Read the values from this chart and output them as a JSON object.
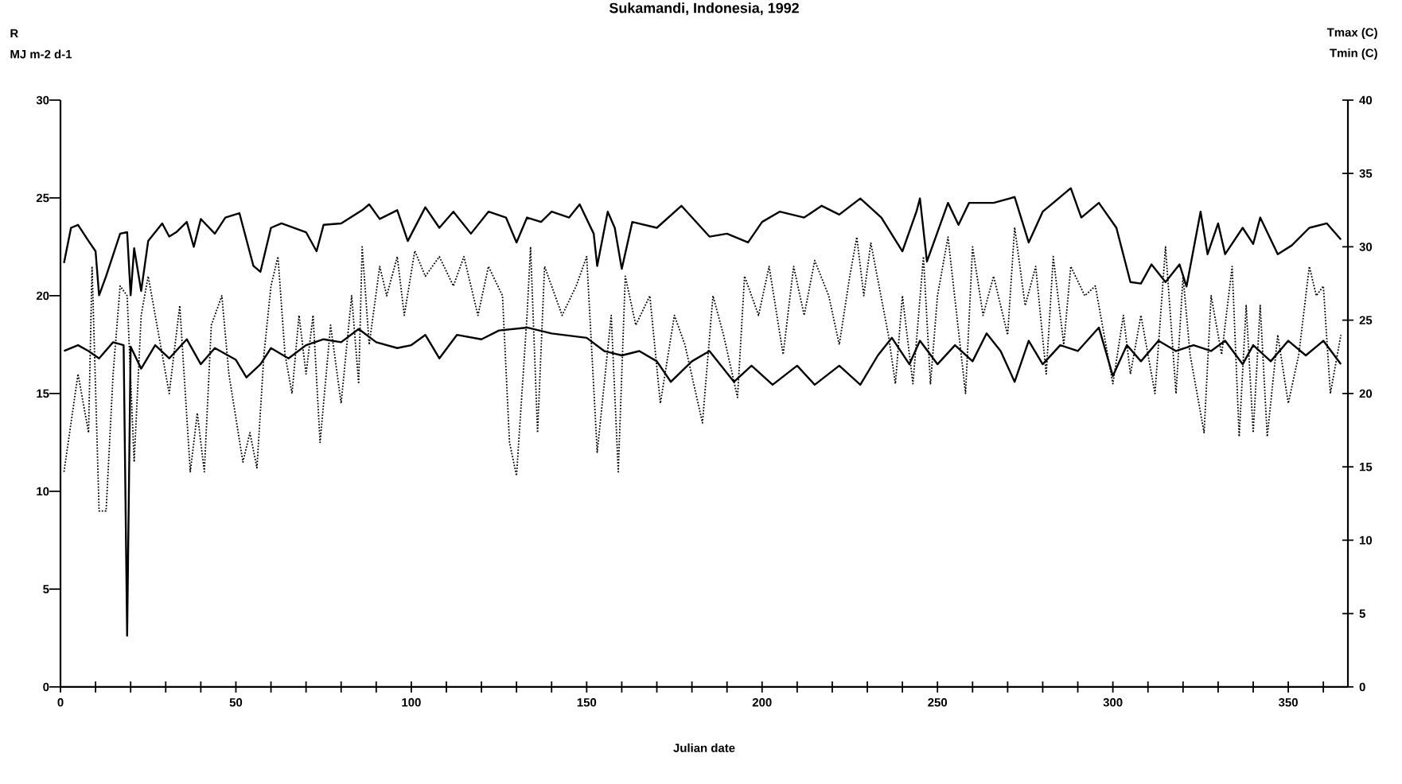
{
  "chart_data": {
    "type": "line",
    "title": "Sukamandi, Indonesia, 1992",
    "xlabel": "Julian date",
    "ylabel": "MJ m-2 d-1",
    "y2label": "Tmin (C)",
    "annotations": [
      "R",
      "Tmax (C)"
    ],
    "xlim": [
      0,
      367
    ],
    "ylim": [
      0,
      30
    ],
    "y2lim": [
      0,
      40
    ],
    "xticks": [
      0,
      {
        "value": 10,
        "label": null
      },
      {
        "value": 20,
        "label": null
      },
      {
        "value": 30,
        "label": null
      },
      {
        "value": 40,
        "label": null
      },
      50,
      {
        "value": 60,
        "label": null
      },
      {
        "value": 70,
        "label": null
      },
      {
        "value": 80,
        "label": null
      },
      {
        "value": 90,
        "label": null
      },
      100,
      {
        "value": 110,
        "label": null
      },
      {
        "value": 120,
        "label": null
      },
      {
        "value": 130,
        "label": null
      },
      {
        "value": 140,
        "label": null
      },
      150,
      {
        "value": 160,
        "label": null
      },
      {
        "value": 170,
        "label": null
      },
      {
        "value": 180,
        "label": null
      },
      {
        "value": 190,
        "label": null
      },
      200,
      {
        "value": 210,
        "label": null
      },
      {
        "value": 220,
        "label": null
      },
      {
        "value": 230,
        "label": null
      },
      {
        "value": 240,
        "label": null
      },
      250,
      {
        "value": 260,
        "label": null
      },
      {
        "value": 270,
        "label": null
      },
      {
        "value": 280,
        "label": null
      },
      {
        "value": 290,
        "label": null
      },
      300,
      {
        "value": 310,
        "label": null
      },
      {
        "value": 320,
        "label": null
      },
      {
        "value": 330,
        "label": null
      },
      {
        "value": 340,
        "label": null
      },
      350,
      {
        "value": 360,
        "label": null
      }
    ],
    "yticks": [
      0,
      5,
      10,
      15,
      20,
      25,
      30
    ],
    "y2ticks": [
      0,
      5,
      10,
      15,
      20,
      25,
      30,
      35,
      40
    ],
    "marker": "none",
    "series": [
      {
        "color": "#000000",
        "line_style": "dotted",
        "x": [
          1,
          3,
          5,
          7,
          8,
          9,
          11,
          13,
          15,
          17,
          19,
          21,
          23,
          25,
          27,
          29,
          31,
          34,
          37,
          39,
          41,
          43,
          46,
          48,
          52,
          54,
          56,
          58,
          60,
          62,
          64,
          66,
          68,
          70,
          72,
          74,
          77,
          80,
          83,
          85,
          86,
          88,
          91,
          93,
          96,
          98,
          101,
          104,
          108,
          112,
          115,
          119,
          122,
          126,
          128,
          130,
          133,
          134,
          136,
          138,
          143,
          147,
          150,
          153,
          157,
          159,
          161,
          164,
          168,
          171,
          175,
          178,
          183,
          186,
          189,
          193,
          195,
          199,
          202,
          206,
          209,
          212,
          215,
          219,
          222,
          225,
          227,
          229,
          231,
          236,
          238,
          240,
          243,
          246,
          248,
          250,
          253,
          258,
          260,
          263,
          266,
          270,
          272,
          275,
          278,
          281,
          283,
          286,
          288,
          292,
          295,
          300,
          303,
          305,
          308,
          312,
          315,
          318,
          320,
          322,
          326,
          328,
          331,
          334,
          336,
          338,
          340,
          342,
          344,
          347,
          350,
          353,
          356,
          358,
          360,
          362,
          365
        ],
        "values": [
          11,
          13.5,
          16,
          14,
          13,
          21.5,
          9,
          9,
          16,
          20.5,
          20,
          11.5,
          19,
          21,
          19,
          17,
          15,
          19.5,
          11,
          14,
          11,
          18.5,
          20,
          16,
          11.5,
          13,
          11.2,
          17,
          20.5,
          22,
          17,
          15,
          19,
          16,
          19,
          12.5,
          18.5,
          14.5,
          20,
          15.5,
          22.5,
          17.5,
          21.5,
          20,
          22,
          19,
          22.3,
          21,
          22,
          20.5,
          22,
          19,
          21.5,
          20,
          12.5,
          10.8,
          19,
          22.5,
          13,
          21.5,
          19,
          20.5,
          22,
          12,
          19,
          11,
          21,
          18.5,
          20,
          14.5,
          19,
          17.5,
          13.5,
          20,
          18,
          14.8,
          21,
          19,
          21.5,
          17,
          21.5,
          19,
          21.8,
          20,
          17.5,
          21,
          23,
          20,
          22.7,
          18,
          15.5,
          20,
          15.5,
          22,
          15.5,
          20,
          23,
          15,
          22.5,
          19,
          21,
          18,
          23.5,
          19.5,
          21.5,
          16,
          22,
          17.5,
          21.5,
          20,
          20.5,
          15.5,
          19,
          16,
          19,
          15,
          22.5,
          15,
          21,
          17,
          13,
          20,
          17,
          21.5,
          12.8,
          19.5,
          13,
          19.5,
          12.8,
          18,
          14.5,
          17,
          21.5,
          20,
          20.5,
          15,
          18
        ]
      },
      {
        "color": "#000000",
        "line_style": "solid",
        "axis": "y2",
        "x": [
          1,
          3,
          5,
          8,
          10,
          11,
          13,
          17,
          19,
          20,
          21,
          23,
          25,
          29,
          31,
          33,
          36,
          38,
          40,
          44,
          47,
          51,
          55,
          57,
          60,
          63,
          70,
          73,
          75,
          80,
          86,
          88,
          91,
          96,
          99,
          104,
          108,
          112,
          117,
          122,
          127,
          130,
          133,
          137,
          140,
          145,
          148,
          152,
          153,
          156,
          158,
          160,
          163,
          170,
          177,
          185,
          190,
          196,
          200,
          205,
          212,
          217,
          222,
          228,
          234,
          240,
          244,
          245,
          247,
          253,
          256,
          259,
          266,
          272,
          276,
          280,
          288,
          291,
          296,
          301,
          305,
          308,
          311,
          315,
          319,
          321,
          325,
          327,
          330,
          332,
          337,
          340,
          342,
          347,
          351,
          356,
          361,
          365
        ],
        "values": [
          28.9,
          31.3,
          31.5,
          30.4,
          29.7,
          26.7,
          28,
          30.9,
          31,
          26.7,
          29.9,
          27,
          30.4,
          31.6,
          30.7,
          31,
          31.7,
          30,
          31.9,
          30.9,
          32,
          32.3,
          28.7,
          28.3,
          31.3,
          31.6,
          31,
          29.7,
          31.5,
          31.6,
          32.5,
          32.9,
          31.9,
          32.5,
          30.4,
          32.7,
          31.3,
          32.4,
          30.9,
          32.4,
          32,
          30.3,
          32,
          31.7,
          32.4,
          32,
          32.9,
          30.9,
          28.7,
          32.4,
          31.3,
          28.5,
          31.7,
          31.3,
          32.8,
          30.7,
          30.9,
          30.3,
          31.7,
          32.4,
          32,
          32.8,
          32.2,
          33.3,
          32,
          29.7,
          32.4,
          33.3,
          29,
          33,
          31.5,
          33,
          33,
          33.4,
          30.3,
          32.4,
          34,
          32,
          33,
          31.3,
          27.6,
          27.5,
          28.8,
          27.6,
          28.8,
          27.3,
          32.4,
          29.5,
          31.6,
          29.5,
          31.3,
          30.2,
          32,
          29.5,
          30.1,
          31.3,
          31.6,
          30.5
        ]
      },
      {
        "color": "#000000",
        "line_style": "solid",
        "axis": "y2",
        "x": [
          1,
          5,
          8,
          11,
          15,
          18,
          19,
          20,
          23,
          27,
          31,
          36,
          40,
          44,
          50,
          53,
          57,
          60,
          65,
          70,
          75,
          80,
          85,
          90,
          96,
          100,
          104,
          108,
          113,
          120,
          125,
          133,
          140,
          150,
          155,
          160,
          165,
          170,
          174,
          180,
          185,
          192,
          197,
          203,
          210,
          215,
          222,
          228,
          233,
          237,
          242,
          245,
          250,
          255,
          260,
          264,
          268,
          272,
          276,
          280,
          285,
          290,
          296,
          300,
          304,
          308,
          313,
          318,
          323,
          328,
          332,
          337,
          340,
          345,
          350,
          355,
          360,
          365
        ],
        "values": [
          22.9,
          23.3,
          22.9,
          22.4,
          23.5,
          23.3,
          3.5,
          23.2,
          21.7,
          23.3,
          22.4,
          23.7,
          22,
          23.1,
          22.3,
          21.1,
          22,
          23.1,
          22.4,
          23.3,
          23.7,
          23.5,
          24.4,
          23.5,
          23.1,
          23.3,
          24,
          22.4,
          24,
          23.7,
          24.3,
          24.5,
          24.1,
          23.8,
          22.9,
          22.6,
          22.9,
          22.2,
          20.8,
          22.2,
          22.9,
          20.8,
          21.9,
          20.6,
          21.9,
          20.6,
          21.9,
          20.6,
          22.6,
          23.8,
          22,
          23.6,
          22,
          23.3,
          22.2,
          24.1,
          22.9,
          20.8,
          23.6,
          22,
          23.3,
          22.9,
          24.5,
          21.2,
          23.3,
          22.2,
          23.6,
          22.9,
          23.3,
          22.9,
          23.6,
          22,
          23.3,
          22.2,
          23.6,
          22.6,
          23.6,
          22
        ]
      }
    ]
  }
}
